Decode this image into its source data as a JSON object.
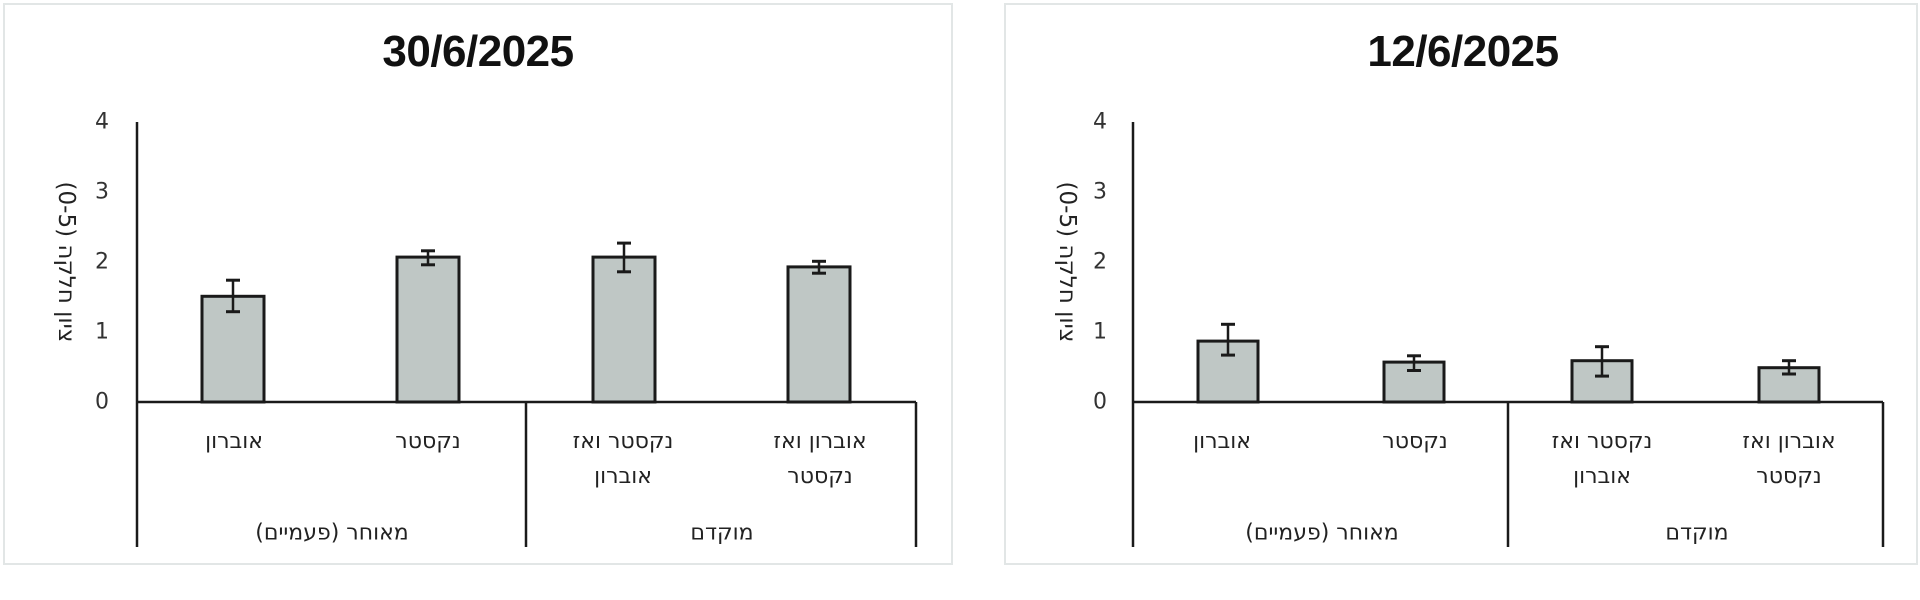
{
  "chart_data": [
    {
      "type": "bar",
      "title": "30/6/2025",
      "ylabel": "ציון חלקה (0-5)",
      "xlabel": "",
      "ylim": [
        0,
        4
      ],
      "yticks": [
        0,
        1,
        2,
        3,
        4
      ],
      "grid": false,
      "legend": null,
      "categories": [
        "אוברון",
        "נקסטר",
        "נקסטר ואז אוברון",
        "אוברון ואז נקסטר"
      ],
      "category_lines": [
        [
          "אוברון"
        ],
        [
          "נקסטר"
        ],
        [
          "נקסטר ואז",
          "אוברון"
        ],
        [
          "אוברון ואז",
          "נקסטר"
        ]
      ],
      "groups": [
        {
          "label": "מאוחר (פעמיים)",
          "categories": [
            "אוברון",
            "נקסטר"
          ]
        },
        {
          "label": "מוקדם",
          "categories": [
            "נקסטר ואז אוברון",
            "אוברון ואז נקסטר"
          ]
        }
      ],
      "values": [
        1.51,
        2.07,
        2.07,
        1.93
      ],
      "error_low": [
        1.29,
        1.96,
        1.86,
        1.84
      ],
      "error_high": [
        1.74,
        2.16,
        2.27,
        2.01
      ],
      "bar_color": "#bfc7c5"
    },
    {
      "type": "bar",
      "title": "12/6/2025",
      "ylabel": "ציון חלקה (0-5)",
      "xlabel": "",
      "ylim": [
        0,
        4
      ],
      "yticks": [
        0,
        1,
        2,
        3,
        4
      ],
      "grid": false,
      "legend": null,
      "categories": [
        "אוברון",
        "נקסטר",
        "נקסטר ואז אוברון",
        "אוברון ואז נקסטר"
      ],
      "category_lines": [
        [
          "אוברון"
        ],
        [
          "נקסטר"
        ],
        [
          "נקסטר ואז",
          "אוברון"
        ],
        [
          "אוברון ואז",
          "נקסטר"
        ]
      ],
      "groups": [
        {
          "label": "מאוחר (פעמיים)",
          "categories": [
            "אוברון",
            "נקסטר"
          ]
        },
        {
          "label": "מוקדם",
          "categories": [
            "נקסטר ואז אוברון",
            "אוברון ואז נקסטר"
          ]
        }
      ],
      "values": [
        0.87,
        0.57,
        0.59,
        0.49
      ],
      "error_low": [
        0.67,
        0.45,
        0.37,
        0.4
      ],
      "error_high": [
        1.11,
        0.66,
        0.79,
        0.59
      ],
      "bar_color": "#bfc7c5"
    }
  ],
  "panels": [
    {
      "title": "30/6/2025",
      "y_axis_label": "ציון חלקה (0-5)",
      "y_ticks": [
        "0",
        "1",
        "2",
        "3",
        "4"
      ],
      "categories": [
        "אוברון",
        "נקסטר",
        "נקסטר ואז\nאוברון",
        "אוברון ואז\nנקסטר"
      ],
      "groups": [
        "מאוחר (פעמיים)",
        "מוקדם"
      ]
    },
    {
      "title": "12/6/2025",
      "y_axis_label": "ציון חלקה (0-5)",
      "y_ticks": [
        "0",
        "1",
        "2",
        "3",
        "4"
      ],
      "categories": [
        "אוברון",
        "נקסטר",
        "נקסטר ואז\nאוברון",
        "אוברון ואז\nנקסטר"
      ],
      "groups": [
        "מאוחר (פעמיים)",
        "מוקדם"
      ]
    }
  ],
  "colors": {
    "bar_fill": "#bfc7c5",
    "bar_stroke": "#1a1a1a",
    "axis": "#1a1a1a",
    "panel_border": "#e2e6e6",
    "text": "#222222"
  }
}
